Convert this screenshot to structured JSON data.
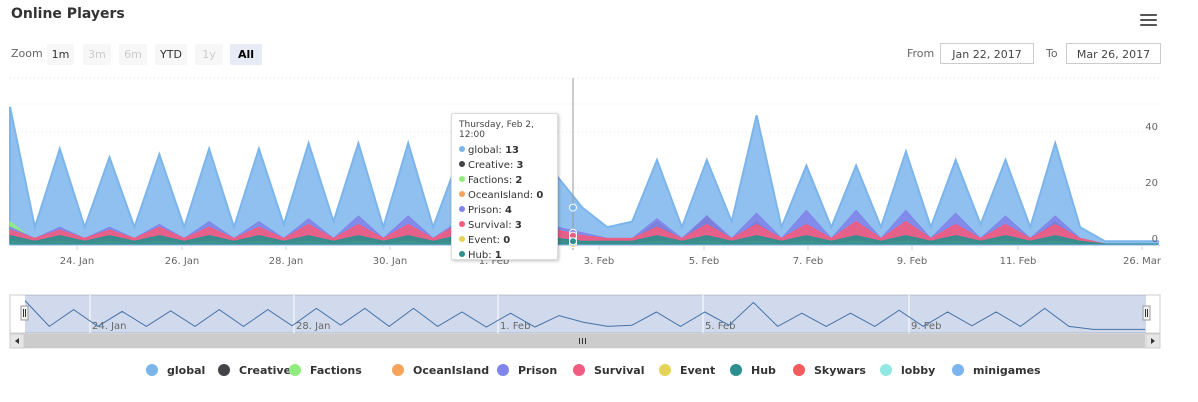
{
  "title": "Online Players",
  "zoom": {
    "label": "Zoom",
    "buttons": [
      {
        "label": "1m",
        "state": "normal"
      },
      {
        "label": "3m",
        "state": "disabled"
      },
      {
        "label": "6m",
        "state": "disabled"
      },
      {
        "label": "YTD",
        "state": "normal"
      },
      {
        "label": "1y",
        "state": "disabled"
      },
      {
        "label": "All",
        "state": "active"
      }
    ]
  },
  "range": {
    "from_label": "From",
    "from_value": "Jan 22, 2017",
    "to_label": "To",
    "to_value": "Mar 26, 2017"
  },
  "tooltip": {
    "date": "Thursday, Feb 2, 12:00",
    "rows": [
      {
        "name": "global",
        "value": "13",
        "color": "#7cb5ec"
      },
      {
        "name": "Creative",
        "value": "3",
        "color": "#434348"
      },
      {
        "name": "Factions",
        "value": "2",
        "color": "#90ed7d"
      },
      {
        "name": "OceanIsland",
        "value": "0",
        "color": "#f7a35c"
      },
      {
        "name": "Prison",
        "value": "4",
        "color": "#8085e9"
      },
      {
        "name": "Survival",
        "value": "3",
        "color": "#f15c80"
      },
      {
        "name": "Event",
        "value": "0",
        "color": "#e4d354"
      },
      {
        "name": "Hub",
        "value": "1",
        "color": "#2b908f"
      }
    ]
  },
  "chart_data": {
    "type": "area",
    "title": "Online Players",
    "y_ticks": [
      "0",
      "20",
      "40"
    ],
    "ylim": [
      0,
      55
    ],
    "x_ticks": [
      "24. Jan",
      "26. Jan",
      "28. Jan",
      "30. Jan",
      "1. Feb",
      "3. Feb",
      "5. Feb",
      "7. Feb",
      "9. Feb",
      "11. Feb",
      "26. Mar"
    ],
    "navigator_ticks": [
      "24. Jan",
      "28. Jan",
      "1. Feb",
      "5. Feb",
      "9. Feb"
    ],
    "x": [
      "Jan 22",
      "Jan 22 12:00",
      "Jan 23",
      "Jan 23 12:00",
      "Jan 24",
      "Jan 24 12:00",
      "Jan 25",
      "Jan 25 12:00",
      "Jan 26",
      "Jan 26 12:00",
      "Jan 27",
      "Jan 27 12:00",
      "Jan 28",
      "Jan 28 12:00",
      "Jan 29",
      "Jan 29 12:00",
      "Jan 30",
      "Jan 30 12:00",
      "Jan 31",
      "Jan 31 12:00",
      "Feb 1",
      "Feb 1 12:00",
      "Feb 2",
      "Feb 2 12:00",
      "Feb 3",
      "Feb 3 12:00",
      "Feb 4",
      "Feb 4 12:00",
      "Feb 5",
      "Feb 5 12:00",
      "Feb 6",
      "Feb 6 12:00",
      "Feb 7",
      "Feb 7 12:00",
      "Feb 8",
      "Feb 8 12:00",
      "Feb 9",
      "Feb 9 12:00",
      "Feb 10",
      "Feb 10 12:00",
      "Feb 11",
      "Feb 11 12:00",
      "Feb 12",
      "Feb 12 12:00",
      "Feb 13",
      "Mar 26"
    ],
    "series": [
      {
        "name": "global",
        "color": "#7cb5ec",
        "values": [
          49,
          6,
          34,
          6,
          31,
          6,
          32,
          6,
          34,
          6,
          34,
          7,
          36,
          8,
          36,
          6,
          36,
          6,
          30,
          5,
          28,
          5,
          24,
          13,
          6,
          8,
          30,
          6,
          30,
          8,
          46,
          6,
          28,
          6,
          28,
          6,
          33,
          6,
          30,
          7,
          30,
          6,
          36,
          6,
          1,
          1
        ]
      },
      {
        "name": "Creative",
        "color": "#434348",
        "values": [
          3,
          1,
          4,
          1,
          3,
          1,
          3,
          1,
          3,
          1,
          3,
          1,
          3,
          1,
          3,
          1,
          4,
          1,
          7,
          1,
          6,
          1,
          4,
          3,
          1,
          1,
          8,
          1,
          10,
          1,
          8,
          1,
          6,
          1,
          5,
          1,
          5,
          1,
          5,
          1,
          6,
          1,
          8,
          1,
          0,
          0
        ]
      },
      {
        "name": "Factions",
        "color": "#90ed7d",
        "values": [
          8,
          1,
          5,
          1,
          5,
          1,
          5,
          1,
          4,
          1,
          4,
          1,
          5,
          1,
          4,
          1,
          4,
          1,
          4,
          1,
          4,
          1,
          3,
          2,
          1,
          1,
          5,
          1,
          6,
          1,
          6,
          1,
          5,
          1,
          5,
          1,
          5,
          1,
          5,
          1,
          5,
          1,
          5,
          1,
          0,
          0
        ]
      },
      {
        "name": "OceanIsland",
        "color": "#f7a35c",
        "values": [
          1,
          0,
          1,
          0,
          1,
          0,
          1,
          0,
          1,
          0,
          1,
          0,
          1,
          0,
          1,
          0,
          1,
          0,
          1,
          0,
          1,
          0,
          0,
          0,
          0,
          0,
          1,
          0,
          1,
          0,
          1,
          0,
          1,
          0,
          1,
          0,
          1,
          0,
          1,
          0,
          1,
          0,
          1,
          0,
          0,
          0
        ]
      },
      {
        "name": "Prison",
        "color": "#8085e9",
        "values": [
          6,
          2,
          6,
          2,
          6,
          2,
          7,
          2,
          8,
          2,
          8,
          2,
          9,
          2,
          10,
          2,
          10,
          2,
          8,
          2,
          8,
          2,
          6,
          4,
          2,
          2,
          9,
          2,
          10,
          2,
          11,
          2,
          12,
          2,
          12,
          2,
          12,
          2,
          11,
          2,
          10,
          2,
          10,
          2,
          0,
          0
        ]
      },
      {
        "name": "Survival",
        "color": "#f15c80",
        "values": [
          5,
          2,
          5,
          2,
          5,
          2,
          6,
          2,
          6,
          2,
          6,
          2,
          7,
          2,
          7,
          2,
          7,
          2,
          7,
          2,
          7,
          2,
          5,
          3,
          2,
          2,
          6,
          2,
          7,
          2,
          7,
          2,
          7,
          2,
          8,
          2,
          8,
          2,
          7,
          2,
          7,
          2,
          7,
          2,
          0,
          0
        ]
      },
      {
        "name": "Event",
        "color": "#e4d354",
        "values": [
          1,
          0,
          1,
          0,
          1,
          0,
          1,
          0,
          1,
          0,
          1,
          0,
          1,
          0,
          1,
          0,
          1,
          0,
          1,
          0,
          1,
          0,
          0,
          0,
          0,
          0,
          1,
          0,
          1,
          0,
          1,
          0,
          1,
          0,
          1,
          0,
          1,
          0,
          1,
          0,
          1,
          0,
          1,
          0,
          0,
          0
        ]
      },
      {
        "name": "Hub",
        "color": "#2b908f",
        "values": [
          3,
          1,
          3,
          1,
          3,
          1,
          3,
          1,
          3,
          1,
          3,
          1,
          3,
          1,
          3,
          1,
          3,
          1,
          3,
          1,
          3,
          1,
          2,
          1,
          1,
          1,
          3,
          1,
          3,
          1,
          3,
          1,
          3,
          1,
          3,
          1,
          3,
          1,
          3,
          1,
          3,
          1,
          3,
          1,
          0,
          0
        ]
      }
    ],
    "legend": [
      {
        "name": "global",
        "color": "#7cb5ec"
      },
      {
        "name": "Creative",
        "color": "#434348"
      },
      {
        "name": "Factions",
        "color": "#90ed7d"
      },
      {
        "name": "OceanIsland",
        "color": "#f7a35c"
      },
      {
        "name": "Prison",
        "color": "#8085e9"
      },
      {
        "name": "Survival",
        "color": "#f15c80"
      },
      {
        "name": "Event",
        "color": "#e4d354"
      },
      {
        "name": "Hub",
        "color": "#2b908f"
      },
      {
        "name": "Skywars",
        "color": "#f45b5b"
      },
      {
        "name": "lobby",
        "color": "#91e8e1"
      },
      {
        "name": "minigames",
        "color": "#7cb5ec"
      }
    ],
    "legend_position": "bottom",
    "grid": true
  }
}
